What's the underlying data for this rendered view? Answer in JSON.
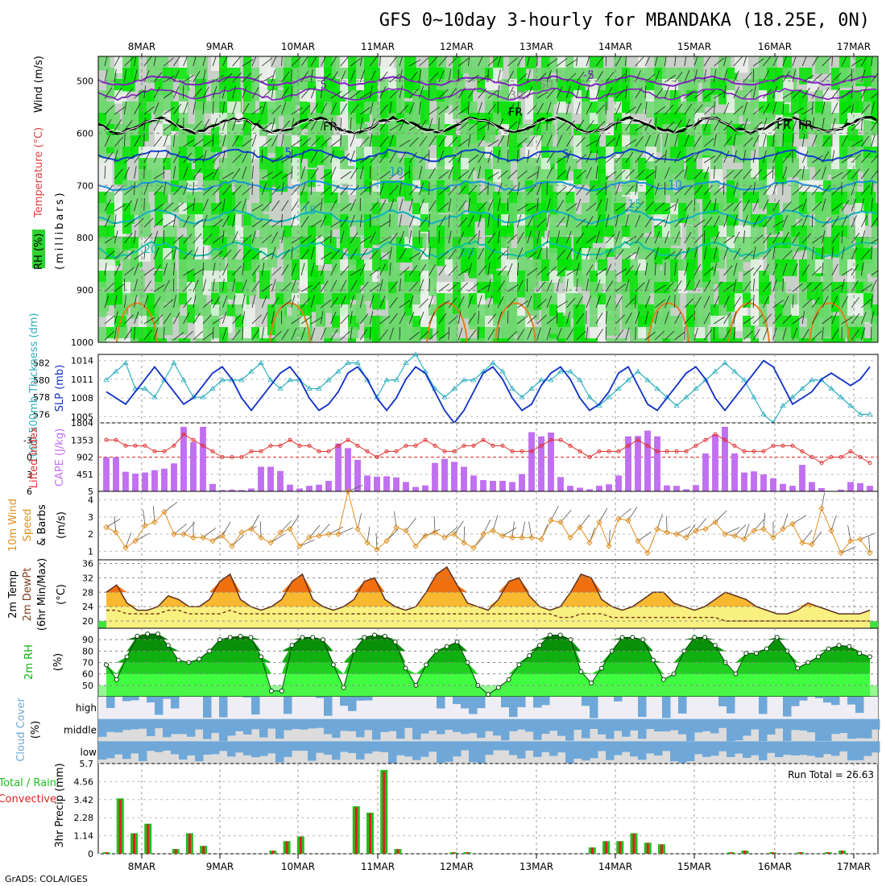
{
  "title": "GFS 0~10day 3-hourly for MBANDAKA (18.25E, 0N)",
  "credit": "GrADS: COLA/IGES",
  "dates": [
    "8MAR",
    "9MAR",
    "10MAR",
    "11MAR",
    "12MAR",
    "13MAR",
    "14MAR",
    "15MAR",
    "16MAR",
    "17MAR"
  ],
  "colors": {
    "rh_light": "#c8d0c8",
    "rh_mid": "#6dd86d",
    "rh_high": "#00e400",
    "cape_bar": "#c070f0",
    "li_line": "#e03030",
    "slp_line": "#1030c8",
    "thick_line": "#30b0c0",
    "wind_line": "#e09020",
    "temp_orange": "#f07010",
    "temp_yellow": "#f8f080",
    "rh_green": "#10b010",
    "precip_green": "#20c020",
    "precip_red": "#e02020",
    "cloud_blue": "#6fa8d8",
    "cloud_gray": "#dcdcdc",
    "cloud_light": "#eeeef4"
  },
  "panels": {
    "upper": {
      "ylabel_wind": "Wind (m/s)",
      "ylabel_temp": "Temperature (°C)",
      "ylabel_rh": "RH (%)",
      "ylabel_units": "(millibars)",
      "pressure_ticks": [
        "500",
        "600",
        "700",
        "800",
        "900",
        "1000"
      ],
      "contour_labels": [
        "5",
        "FR",
        "FR",
        "FR",
        "FR",
        "5",
        "5",
        "10",
        "10",
        "15",
        "15",
        "20",
        "20",
        "-5",
        "30",
        "50"
      ]
    },
    "thickness": {
      "ylabel_left": "1000-500mb Thickness (dm)",
      "ylabel_right": "SLP (mb)",
      "ticks_left": [
        "582",
        "580",
        "578",
        "576"
      ],
      "ticks_right": [
        "1014",
        "1011",
        "1008",
        "1005"
      ]
    },
    "cape": {
      "ylabel_left": "Lifted Index",
      "ylabel_right": "CAPE (J/kg)",
      "ticks_left": [
        "-3",
        "0",
        "3",
        "6"
      ],
      "ticks_right": [
        "1804",
        "1353",
        "902",
        "451",
        "5"
      ]
    },
    "wind10m": {
      "ylabel_1": "10m Wind",
      "ylabel_2": "Speed",
      "ylabel_3": "& Barbs",
      "ylabel_units": "(m/s)",
      "ticks": [
        "4",
        "3",
        "2",
        "1"
      ]
    },
    "temp2m": {
      "ylabel_1": "2m Temp",
      "ylabel_2": "2m DewPt",
      "ylabel_3": "(6hr Min/Max)",
      "ylabel_units": "(°C)",
      "ticks": [
        "36",
        "32",
        "28",
        "24",
        "20"
      ]
    },
    "rh2m": {
      "ylabel_1": "2m RH",
      "ylabel_units": "(%)",
      "ticks": [
        "90",
        "80",
        "70",
        "60",
        "50"
      ]
    },
    "cloud": {
      "ylabel_1": "Cloud Cover",
      "ylabel_units": "(%)",
      "levels": [
        "high",
        "middle",
        "low"
      ]
    },
    "precip": {
      "ylabel_1": "3hr Precip (mm)",
      "legend_1": "Total / Rain",
      "legend_2": "Convective",
      "ticks": [
        "5.7",
        "4.56",
        "3.42",
        "2.28",
        "1.14",
        "0"
      ],
      "run_total_label": "Run Total = 26.63"
    }
  },
  "chart_data": [
    {
      "type": "line",
      "name": "1000-500mb thickness",
      "units": "dm",
      "ylim": [
        575,
        583
      ],
      "values": [
        580,
        581,
        582,
        579,
        579,
        578,
        580,
        582,
        580,
        578,
        578,
        579,
        580,
        580,
        580,
        581,
        582,
        580,
        579,
        580,
        580,
        579,
        579,
        580,
        581,
        582,
        582,
        580,
        578,
        580,
        580,
        582,
        583,
        581,
        579,
        578,
        579,
        580,
        580,
        581,
        582,
        581,
        579,
        578,
        579,
        580,
        580,
        581,
        581,
        580,
        578,
        577,
        578,
        579,
        580,
        581,
        580,
        579,
        578,
        577,
        578,
        579,
        580,
        581,
        582,
        581,
        580,
        578,
        576,
        575,
        577,
        578,
        579,
        580,
        580,
        579,
        578,
        577,
        576,
        576
      ]
    },
    {
      "type": "line",
      "name": "SLP",
      "units": "mb",
      "ylim": [
        1004,
        1015
      ],
      "values": [
        1009,
        1008,
        1007,
        1009,
        1011,
        1013,
        1011,
        1009,
        1007,
        1008,
        1010,
        1012,
        1013,
        1011,
        1008,
        1006,
        1008,
        1010,
        1012,
        1013,
        1011,
        1008,
        1006,
        1007,
        1009,
        1012,
        1013,
        1011,
        1008,
        1006,
        1008,
        1011,
        1013,
        1012,
        1009,
        1006,
        1004,
        1006,
        1009,
        1012,
        1013,
        1011,
        1008,
        1006,
        1007,
        1010,
        1012,
        1013,
        1011,
        1008,
        1006,
        1007,
        1009,
        1012,
        1013,
        1010,
        1007,
        1006,
        1008,
        1010,
        1012,
        1013,
        1011,
        1008,
        1006,
        1008,
        1010,
        1012,
        1014,
        1013,
        1010,
        1007,
        1008,
        1009,
        1011,
        1012,
        1011,
        1010,
        1011,
        1013
      ]
    },
    {
      "type": "line",
      "name": "Lifted Index",
      "ylim": [
        6,
        -6
      ],
      "values": [
        -3,
        -3,
        -2,
        -2,
        -2,
        -1,
        -1,
        -2,
        -4,
        -3,
        -2,
        -1,
        0,
        0,
        0,
        -1,
        -1,
        -2,
        -2,
        -3,
        -2,
        -2,
        -1,
        -1,
        -2,
        -3,
        -2,
        -1,
        0,
        -1,
        -1,
        -2,
        -2,
        -3,
        -2,
        -1,
        -1,
        -2,
        -2,
        -3,
        -2,
        -2,
        -1,
        -1,
        -1,
        -2,
        -3,
        -3,
        -2,
        -1,
        0,
        -1,
        -1,
        -1,
        -2,
        -3,
        -2,
        -1,
        -1,
        -1,
        -1,
        -2,
        -3,
        -4,
        -3,
        -2,
        -1,
        -1,
        -1,
        -2,
        -2,
        -2,
        -1,
        0,
        1,
        0,
        0,
        -1,
        0,
        1
      ]
    },
    {
      "type": "bar",
      "name": "CAPE",
      "units": "J/kg",
      "ylim": [
        5,
        1804
      ],
      "values": [
        900,
        900,
        520,
        470,
        500,
        560,
        600,
        740,
        1700,
        1300,
        1700,
        200,
        40,
        50,
        40,
        80,
        650,
        650,
        540,
        180,
        80,
        150,
        180,
        280,
        1260,
        1140,
        830,
        420,
        390,
        400,
        370,
        250,
        120,
        160,
        750,
        860,
        780,
        650,
        420,
        300,
        280,
        280,
        250,
        460,
        1560,
        1450,
        1550,
        380,
        150,
        100,
        60,
        150,
        190,
        420,
        1450,
        1460,
        1600,
        1450,
        160,
        150,
        60,
        170,
        1000,
        1500,
        1700,
        1000,
        500,
        530,
        450,
        350,
        200,
        150,
        700,
        250,
        90,
        0,
        50,
        250,
        220,
        150
      ]
    },
    {
      "type": "line",
      "name": "10m Wind Speed",
      "units": "m/s",
      "ylim": [
        0.5,
        4.5
      ],
      "values": [
        2.4,
        2.1,
        1.2,
        1.6,
        2.5,
        2.7,
        3.3,
        2.0,
        2.0,
        1.8,
        1.8,
        1.6,
        1.9,
        1.3,
        2.1,
        2.3,
        1.8,
        1.5,
        2.1,
        2.3,
        1.3,
        1.8,
        1.9,
        2.0,
        2.0,
        4.5,
        2.3,
        1.5,
        1.1,
        1.6,
        2.4,
        2.2,
        1.3,
        1.9,
        2.1,
        1.8,
        2.0,
        1.5,
        1.2,
        2.0,
        2.2,
        1.9,
        1.8,
        1.8,
        1.8,
        1.7,
        2.8,
        2.7,
        1.8,
        2.4,
        1.5,
        2.7,
        1.3,
        2.9,
        2.8,
        1.6,
        0.9,
        2.3,
        2.1,
        2.0,
        1.8,
        2.2,
        2.3,
        2.7,
        2.0,
        1.9,
        1.7,
        2.2,
        2.3,
        1.8,
        2.3,
        2.6,
        1.5,
        1.4,
        3.5,
        2.2,
        0.9,
        1.6,
        1.7,
        0.9
      ]
    },
    {
      "type": "area",
      "name": "2m Temp",
      "units": "°C",
      "ylim": [
        18,
        37
      ],
      "values": [
        28,
        30,
        25,
        23,
        23,
        24,
        27,
        26,
        24,
        24,
        26,
        31,
        33,
        26,
        24,
        23,
        24,
        26,
        31,
        33,
        26,
        24,
        23,
        24,
        26,
        31,
        32,
        26,
        24,
        23,
        24,
        28,
        33,
        35,
        30,
        25,
        24,
        23,
        26,
        31,
        32,
        27,
        24,
        23,
        24,
        28,
        33,
        32,
        26,
        24,
        23,
        24,
        26,
        28,
        28,
        25,
        24,
        23,
        24,
        26,
        28,
        27,
        26,
        24,
        23,
        22,
        22,
        23,
        25,
        24,
        23,
        22,
        22,
        22,
        23
      ]
    },
    {
      "type": "line",
      "name": "2m DewPt",
      "units": "°C",
      "ylim": [
        18,
        37
      ],
      "values": [
        23,
        23,
        22,
        22,
        22,
        22,
        23,
        23,
        22,
        22,
        22,
        22,
        23,
        22,
        22,
        22,
        22,
        22,
        22,
        22,
        22,
        22,
        22,
        22,
        22,
        22,
        22,
        22,
        22,
        22,
        22,
        22,
        22,
        22,
        22,
        22,
        22,
        22,
        22,
        22,
        22,
        22,
        22,
        22,
        21,
        21,
        22,
        22,
        22,
        21,
        21,
        21,
        21,
        21,
        21,
        21,
        21,
        21,
        21,
        21,
        20,
        20,
        20,
        20,
        20,
        20,
        20,
        20,
        20,
        20,
        20,
        20,
        20,
        20,
        20
      ]
    },
    {
      "type": "area",
      "name": "2m RH",
      "units": "%",
      "ylim": [
        40,
        100
      ],
      "values": [
        68,
        55,
        75,
        93,
        95,
        95,
        85,
        72,
        70,
        73,
        80,
        90,
        92,
        93,
        92,
        75,
        45,
        45,
        85,
        92,
        92,
        90,
        68,
        48,
        80,
        92,
        94,
        93,
        88,
        65,
        50,
        68,
        80,
        84,
        88,
        70,
        50,
        42,
        48,
        55,
        68,
        76,
        85,
        94,
        94,
        90,
        62,
        52,
        65,
        80,
        92,
        92,
        90,
        72,
        55,
        60,
        80,
        92,
        92,
        85,
        70,
        60,
        78,
        78,
        82,
        92,
        80,
        65,
        70,
        75,
        82,
        85,
        84,
        78,
        75
      ]
    },
    {
      "type": "bar",
      "name": "3hr Precip",
      "units": "mm",
      "ylim": [
        0,
        5.7
      ],
      "categories_hint": "3-hourly steps",
      "values": [
        0.1,
        3.5,
        1.3,
        1.9,
        0,
        0.3,
        1.3,
        0.5,
        0,
        0,
        0,
        0,
        0.2,
        0.8,
        1.1,
        0,
        0,
        0,
        3.0,
        2.6,
        5.3,
        0.3,
        0,
        0,
        0,
        0.1,
        0.1,
        0,
        0,
        0,
        0,
        0,
        0,
        0,
        0,
        0.4,
        0.8,
        0.8,
        1.3,
        0.7,
        0.6,
        0,
        0,
        0,
        0,
        0.1,
        0.2,
        0,
        0.1,
        0,
        0.1,
        0,
        0.1,
        0.2,
        0,
        0
      ]
    }
  ]
}
